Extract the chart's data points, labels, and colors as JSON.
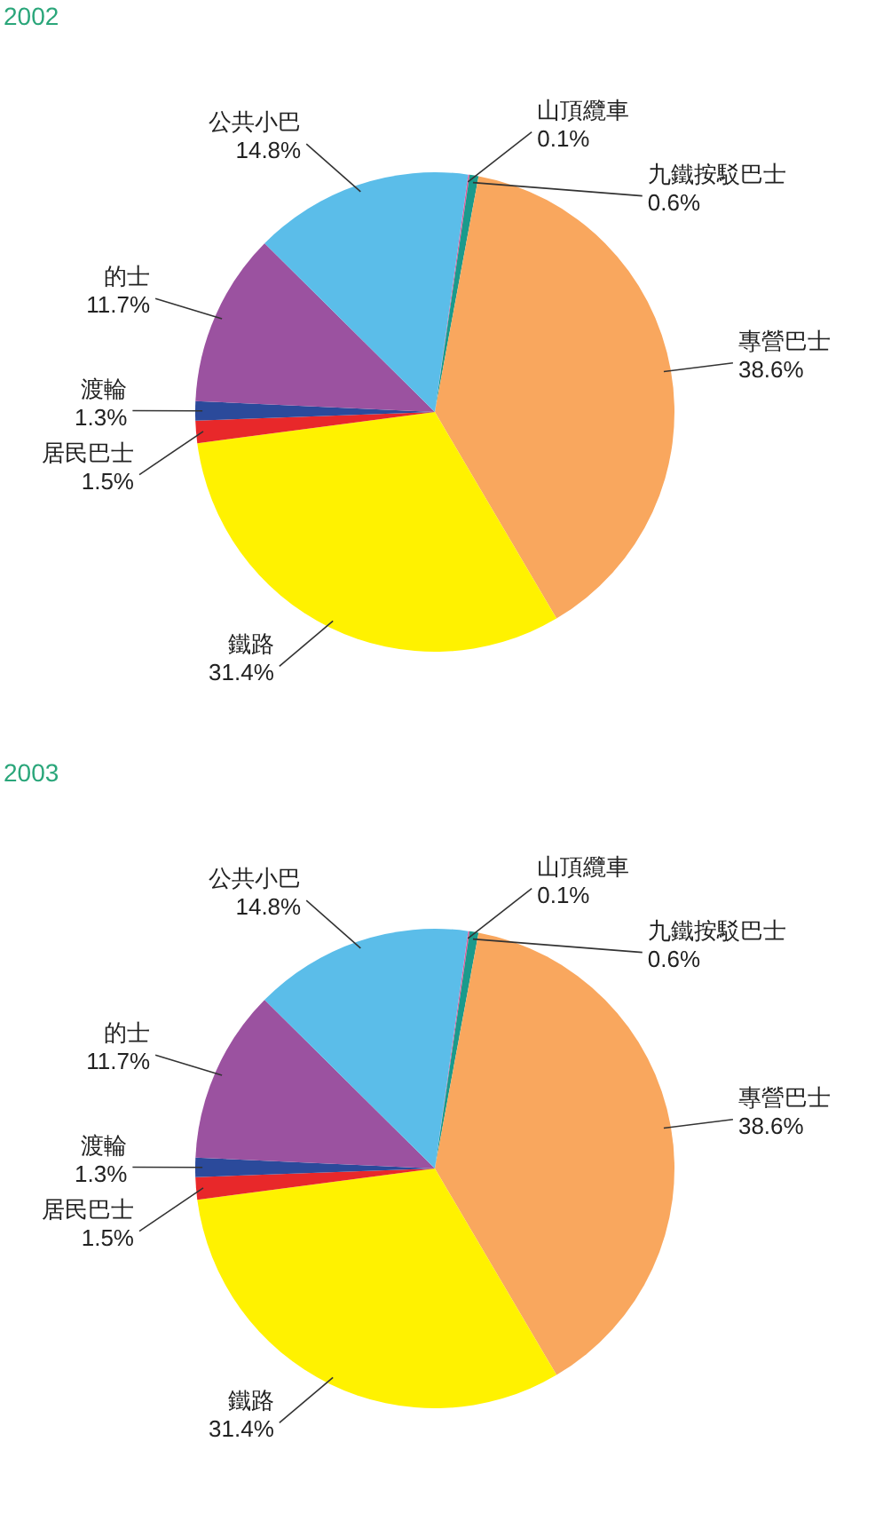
{
  "chart_data": [
    {
      "type": "pie",
      "title": "2002",
      "categories": [
        "山頂纜車",
        "九鐵按駁巴士",
        "專營巴士",
        "鐵路",
        "居民巴士",
        "渡輪",
        "的士",
        "公共小巴"
      ],
      "values": [
        0.1,
        0.6,
        38.6,
        31.4,
        1.5,
        1.3,
        11.7,
        14.8
      ],
      "value_labels": [
        "0.1%",
        "0.6%",
        "38.6%",
        "31.4%",
        "1.5%",
        "1.3%",
        "11.7%",
        "14.8%"
      ],
      "colors": [
        "#e8579a",
        "#1a9a8c",
        "#f9a75e",
        "#fff200",
        "#e8282a",
        "#2b4a9b",
        "#9b52a0",
        "#5bbde9"
      ]
    },
    {
      "type": "pie",
      "title": "2003",
      "categories": [
        "山頂纜車",
        "九鐵按駁巴士",
        "專營巴士",
        "鐵路",
        "居民巴士",
        "渡輪",
        "的士",
        "公共小巴"
      ],
      "values": [
        0.1,
        0.6,
        38.6,
        31.4,
        1.5,
        1.3,
        11.7,
        14.8
      ],
      "value_labels": [
        "0.1%",
        "0.6%",
        "38.6%",
        "31.4%",
        "1.5%",
        "1.3%",
        "11.7%",
        "14.8%"
      ],
      "colors": [
        "#e8579a",
        "#1a9a8c",
        "#f9a75e",
        "#fff200",
        "#e8282a",
        "#2b4a9b",
        "#9b52a0",
        "#5bbde9"
      ]
    }
  ]
}
